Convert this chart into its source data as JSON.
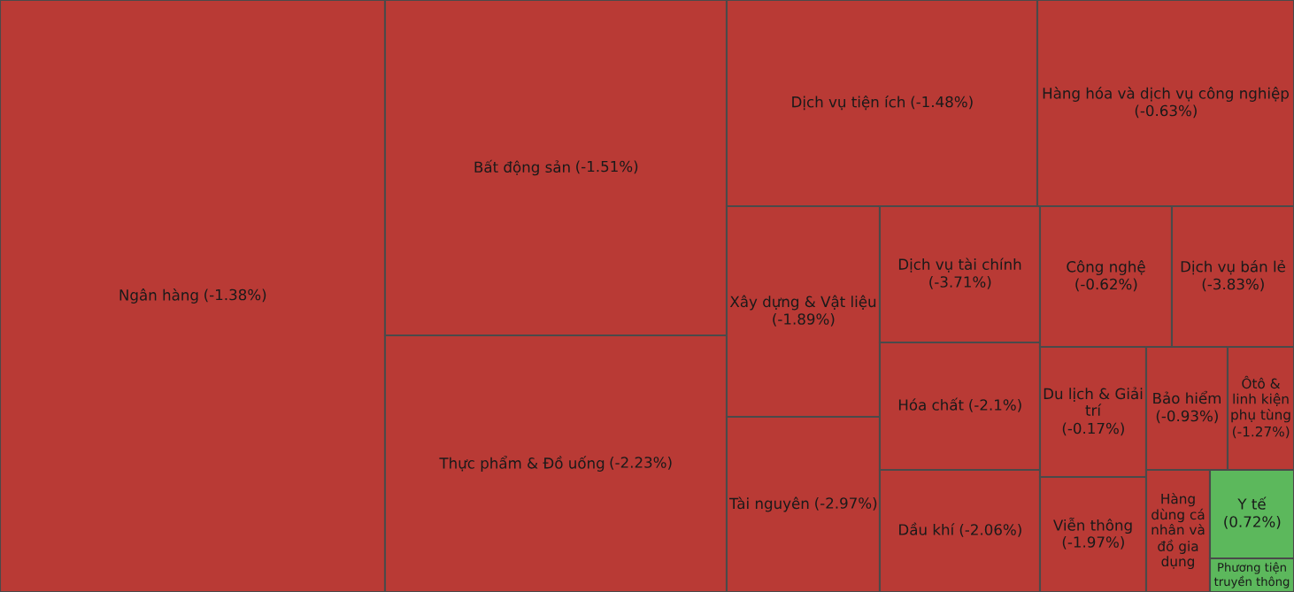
{
  "chart_data": {
    "type": "other",
    "value_labels": [
      "(-1.38%)",
      "(-1.51%)",
      "(-2.23%)",
      "(-1.48%)",
      "(-0.63%)",
      "(-1.89%)",
      "(-2.97%)",
      "(-3.71%)",
      "(-2.1%)",
      "(-2.06%)",
      "(-0.62%)",
      "(-3.83%)",
      "(-0.17%)",
      "(-1.97%)",
      "(-0.93%)",
      "(-1.27%)",
      null,
      "(0.72%)",
      null
    ],
    "categories": [
      "Ngân hàng",
      "Bất động sản",
      "Thực phẩm & Đồ uống",
      "Dịch vụ tiện ích",
      "Hàng hóa và dịch vụ công nghiệp",
      "Xây dựng & Vật liệu",
      "Tài nguyên",
      "Dịch vụ tài chính",
      "Hóa chất",
      "Dầu khí",
      "Công nghệ",
      "Dịch vụ bán lẻ",
      "Du lịch & Giải trí",
      "Viễn thông",
      "Bảo hiểm",
      "Ôtô & linh kiện phụ tùng",
      "Hàng dùng cá nhân và đồ gia dụng",
      "Y tế",
      "Phương tiện truyền thông"
    ],
    "values": [
      -1.38,
      -1.51,
      -2.23,
      -1.48,
      -0.63,
      -1.89,
      -2.97,
      -3.71,
      -2.1,
      -2.06,
      -0.62,
      -3.83,
      -0.17,
      -1.97,
      -0.93,
      -1.27,
      null,
      0.72,
      null
    ],
    "colors": [
      "#b93a35",
      "#b93a35",
      "#b93a35",
      "#b93a35",
      "#b93a35",
      "#b93a35",
      "#b93a35",
      "#b93a35",
      "#b93a35",
      "#b93a35",
      "#b93a35",
      "#b93a35",
      "#b93a35",
      "#b93a35",
      "#b93a35",
      "#b93a35",
      "#b93a35",
      "#5cb85c",
      "#5cb85c"
    ]
  }
}
